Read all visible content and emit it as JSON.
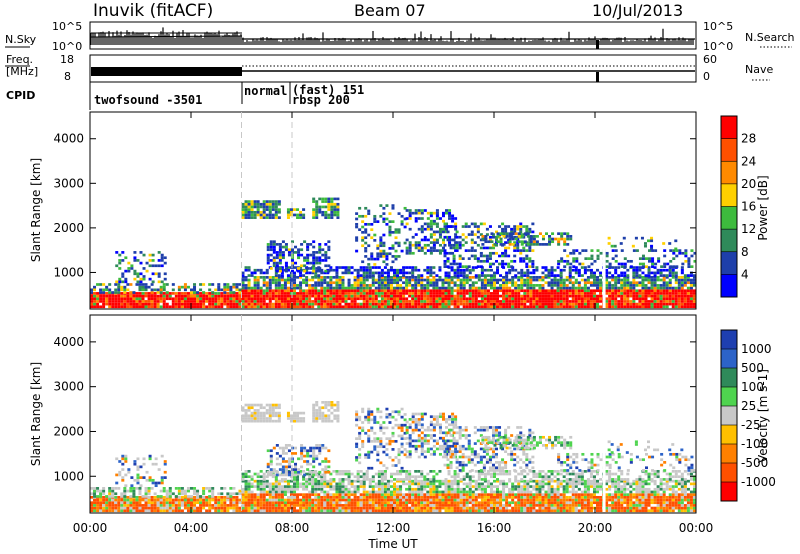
{
  "header": {
    "station": "Inuvik (fitACF)",
    "beam": "Beam 07",
    "date": "10/Jul/2013"
  },
  "top_panels": {
    "nsky_label": "N.Sky",
    "nsky_ticks": [
      "10^5",
      "10^0"
    ],
    "nsearch_label": "N.Search",
    "nsearch_ticks": [
      "10^5",
      "10^0"
    ],
    "freq_label_1": "Freq.",
    "freq_label_2": "[MHz]",
    "freq_ticks": [
      "18",
      "8"
    ],
    "nave_label": "Nave",
    "nave_ticks": [
      "60",
      "0"
    ],
    "cpid_label": "CPID",
    "cpid_segments": [
      {
        "label": "twofsound -3501"
      },
      {
        "label": "normal"
      },
      {
        "label_top": "(fast) 151",
        "label_bottom": "rbsp 200"
      }
    ]
  },
  "chart_data": [
    {
      "type": "heatmap",
      "name": "power",
      "ylabel": "Slant Range [km]",
      "y_ticks": [
        "1000",
        "2000",
        "3000",
        "4000"
      ],
      "ylim": [
        180,
        4600
      ],
      "x_ticks": [
        "00:00",
        "04:00",
        "08:00",
        "12:00",
        "16:00",
        "20:00",
        "00:00"
      ],
      "xlim_hours": [
        0,
        24
      ],
      "colorbar_label": "Power [dB]",
      "colorbar_ticks": [
        "4",
        "8",
        "12",
        "16",
        "20",
        "24",
        "28"
      ],
      "colorbar_colors": [
        "#0000ff",
        "#1e3faa",
        "#2f8a5a",
        "#3dbb3d",
        "#ffd000",
        "#ff8a00",
        "#ff5000",
        "#ff0000"
      ],
      "vertical_markers_hours": [
        6,
        8
      ]
    },
    {
      "type": "heatmap",
      "name": "velocity",
      "ylabel": "Slant Range [km]",
      "y_ticks": [
        "1000",
        "2000",
        "3000",
        "4000"
      ],
      "ylim": [
        180,
        4600
      ],
      "x_ticks": [
        "00:00",
        "04:00",
        "08:00",
        "12:00",
        "16:00",
        "20:00",
        "00:00"
      ],
      "xlim_hours": [
        0,
        24
      ],
      "xlabel": "Time UT",
      "colorbar_label": "Velocity [m s-1]",
      "colorbar_ticks": [
        "1000",
        "500",
        "100",
        "25",
        "-25",
        "-100",
        "-500",
        "-1000"
      ],
      "colorbar_colors": [
        "#1e3fb0",
        "#2c63c8",
        "#2f8a5a",
        "#4fd44f",
        "#c8c8c8",
        "#ffc000",
        "#ff8000",
        "#ff5000",
        "#ff0000"
      ],
      "vertical_markers_hours": [
        6,
        8
      ]
    }
  ]
}
